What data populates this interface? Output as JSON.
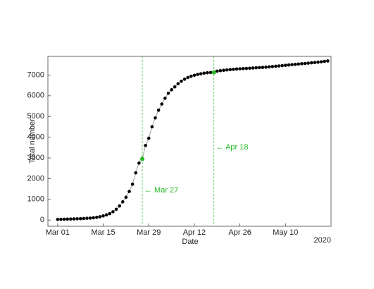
{
  "chart_data": {
    "type": "line",
    "x_label": "Date",
    "y_label": "Total number",
    "year_label": "2020",
    "x": [
      "2020-03-01",
      "2020-03-02",
      "2020-03-03",
      "2020-03-04",
      "2020-03-05",
      "2020-03-06",
      "2020-03-07",
      "2020-03-08",
      "2020-03-09",
      "2020-03-10",
      "2020-03-11",
      "2020-03-12",
      "2020-03-13",
      "2020-03-14",
      "2020-03-15",
      "2020-03-16",
      "2020-03-17",
      "2020-03-18",
      "2020-03-19",
      "2020-03-20",
      "2020-03-21",
      "2020-03-22",
      "2020-03-23",
      "2020-03-24",
      "2020-03-25",
      "2020-03-26",
      "2020-03-27",
      "2020-03-28",
      "2020-03-29",
      "2020-03-30",
      "2020-03-31",
      "2020-04-01",
      "2020-04-02",
      "2020-04-03",
      "2020-04-04",
      "2020-04-05",
      "2020-04-06",
      "2020-04-07",
      "2020-04-08",
      "2020-04-09",
      "2020-04-10",
      "2020-04-11",
      "2020-04-12",
      "2020-04-13",
      "2020-04-14",
      "2020-04-15",
      "2020-04-16",
      "2020-04-17",
      "2020-04-18",
      "2020-04-19",
      "2020-04-20",
      "2020-04-21",
      "2020-04-22",
      "2020-04-23",
      "2020-04-24",
      "2020-04-25",
      "2020-04-26",
      "2020-04-27",
      "2020-04-28",
      "2020-04-29",
      "2020-04-30",
      "2020-05-01",
      "2020-05-02",
      "2020-05-03",
      "2020-05-04",
      "2020-05-05",
      "2020-05-06",
      "2020-05-07",
      "2020-05-08",
      "2020-05-09",
      "2020-05-10",
      "2020-05-11",
      "2020-05-12",
      "2020-05-13",
      "2020-05-14",
      "2020-05-15",
      "2020-05-16",
      "2020-05-17",
      "2020-05-18",
      "2020-05-19",
      "2020-05-20",
      "2020-05-21",
      "2020-05-22",
      "2020-05-23"
    ],
    "series": [
      {
        "color": "#000000",
        "line_color": "#888888",
        "values": [
          30,
          35,
          40,
          45,
          50,
          55,
          60,
          65,
          75,
          85,
          95,
          110,
          130,
          160,
          200,
          250,
          310,
          400,
          520,
          680,
          880,
          1100,
          1380,
          1730,
          2280,
          2750,
          2950,
          3600,
          3950,
          4500,
          4930,
          5300,
          5600,
          5880,
          6120,
          6290,
          6430,
          6580,
          6700,
          6800,
          6880,
          6940,
          6990,
          7030,
          7060,
          7090,
          7110,
          7120,
          7130,
          7190,
          7210,
          7230,
          7245,
          7260,
          7275,
          7290,
          7300,
          7310,
          7320,
          7330,
          7340,
          7350,
          7360,
          7370,
          7380,
          7395,
          7410,
          7425,
          7440,
          7455,
          7470,
          7485,
          7500,
          7515,
          7530,
          7545,
          7560,
          7575,
          7590,
          7605,
          7620,
          7640,
          7660,
          7680
        ]
      }
    ],
    "annotations": [
      {
        "x": "2020-03-27",
        "label": "← Mar 27",
        "color": "#22bb22"
      },
      {
        "x": "2020-04-18",
        "label": "← Apr 18",
        "color": "#22bb22"
      }
    ],
    "xlim": [
      "2020-02-27",
      "2020-05-24"
    ],
    "xticks": [
      {
        "value": "2020-03-01",
        "label": "Mar 01"
      },
      {
        "value": "2020-03-15",
        "label": "Mar 15"
      },
      {
        "value": "2020-03-29",
        "label": "Mar 29"
      },
      {
        "value": "2020-04-12",
        "label": "Apr 12"
      },
      {
        "value": "2020-04-26",
        "label": "Apr 26"
      },
      {
        "value": "2020-05-10",
        "label": "May 10"
      }
    ],
    "ylim": [
      -300,
      7900
    ],
    "yticks": [
      0,
      1000,
      2000,
      3000,
      4000,
      5000,
      6000,
      7000
    ]
  }
}
